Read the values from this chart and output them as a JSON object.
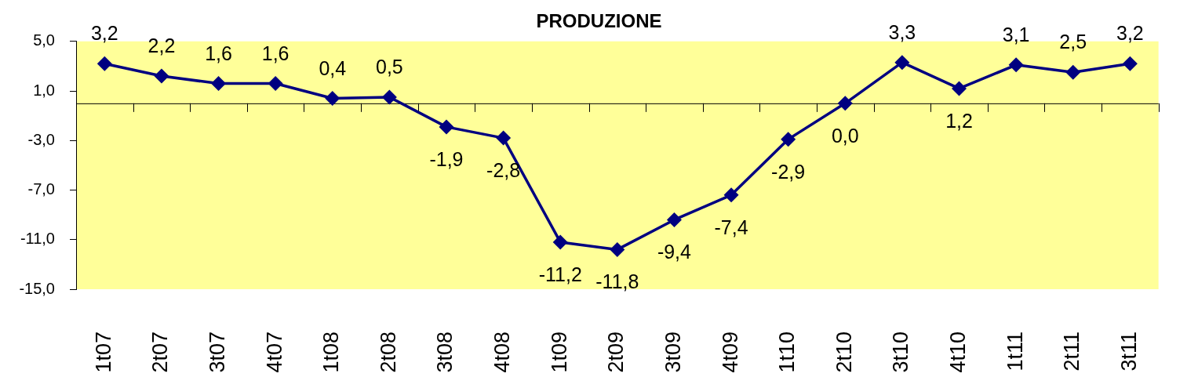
{
  "chart_data": {
    "type": "line",
    "title": "PRODUZIONE",
    "categories": [
      "1t07",
      "2t07",
      "3t07",
      "4t07",
      "1t08",
      "2t08",
      "3t08",
      "4t08",
      "1t09",
      "2t09",
      "3t09",
      "4t09",
      "1t10",
      "2t10",
      "3t10",
      "4t10",
      "1t11",
      "2t11",
      "3t11"
    ],
    "values": [
      3.2,
      2.2,
      1.6,
      1.6,
      0.4,
      0.5,
      -1.9,
      -2.8,
      -11.2,
      -11.8,
      -9.4,
      -7.4,
      -2.9,
      0.0,
      3.3,
      1.2,
      3.1,
      2.5,
      3.2
    ],
    "value_labels": [
      "3,2",
      "2,2",
      "1,6",
      "1,6",
      "0,4",
      "0,5",
      "-1,9",
      "-2,8",
      "-11,2",
      "-11,8",
      "-9,4",
      "-7,4",
      "-2,9",
      "0,0",
      "3,3",
      "1,2",
      "3,1",
      "2,5",
      "3,2"
    ],
    "color": "#000080",
    "ylim": [
      -15,
      5
    ],
    "yticks": [
      {
        "value": 5,
        "label": "5,0"
      },
      {
        "value": 1,
        "label": "1,0"
      },
      {
        "value": -3,
        "label": "-3,0"
      },
      {
        "value": -7,
        "label": "-7,0"
      },
      {
        "value": -11,
        "label": "-11,0"
      },
      {
        "value": -15,
        "label": "-15,0"
      }
    ],
    "grid": false,
    "legend": false,
    "marker": "diamond",
    "line_style": "solid"
  }
}
